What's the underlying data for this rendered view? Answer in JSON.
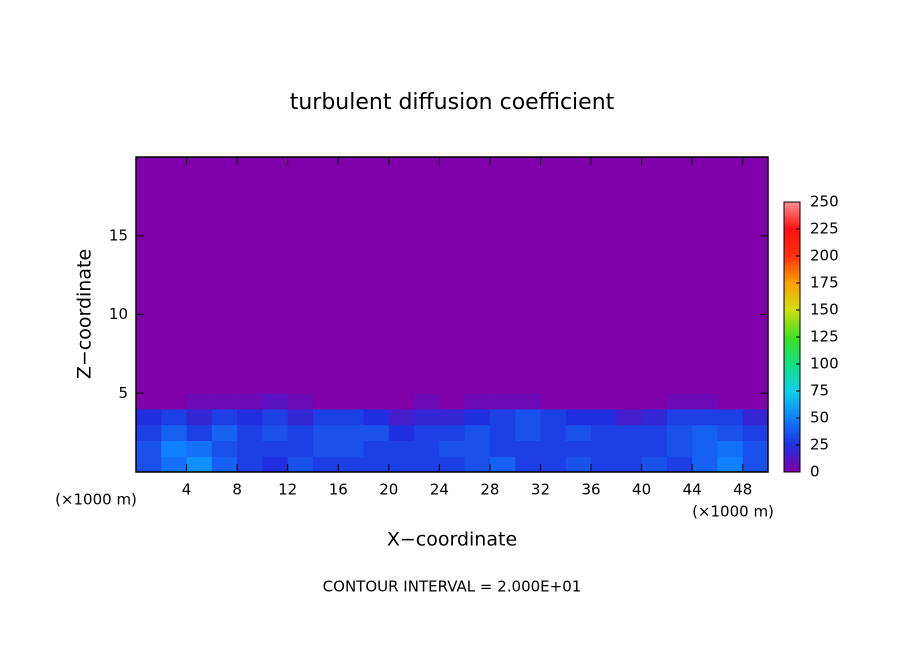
{
  "chart_data": {
    "type": "heatmap",
    "title": "turbulent diffusion coefficient",
    "x_label": "X−coordinate",
    "y_label": "Z−coordinate",
    "x_unit": "(×1000 m)",
    "y_unit": "(×1000 m)",
    "note": "CONTOUR INTERVAL = 2.000E+01",
    "xlim": [
      0,
      50
    ],
    "ylim": [
      0,
      20
    ],
    "xticks": [
      4,
      8,
      12,
      16,
      20,
      24,
      28,
      32,
      36,
      40,
      44,
      48
    ],
    "yticks": [
      5,
      10,
      15
    ],
    "x_edges": [
      0,
      2,
      4,
      6,
      8,
      10,
      12,
      14,
      16,
      18,
      20,
      22,
      24,
      26,
      28,
      30,
      32,
      34,
      36,
      38,
      40,
      42,
      44,
      46,
      48,
      50
    ],
    "y_edges": [
      0,
      1,
      2,
      3,
      4,
      5,
      20
    ],
    "z": [
      [
        35,
        45,
        55,
        40,
        30,
        25,
        35,
        30,
        30,
        30,
        30,
        30,
        30,
        35,
        40,
        30,
        30,
        35,
        30,
        30,
        35,
        30,
        40,
        50,
        35
      ],
      [
        35,
        50,
        45,
        35,
        30,
        30,
        30,
        35,
        35,
        30,
        30,
        30,
        35,
        35,
        30,
        30,
        30,
        30,
        30,
        30,
        30,
        35,
        40,
        45,
        35
      ],
      [
        30,
        40,
        30,
        40,
        30,
        35,
        30,
        35,
        35,
        35,
        25,
        30,
        30,
        35,
        30,
        35,
        30,
        35,
        30,
        30,
        30,
        35,
        40,
        35,
        30
      ],
      [
        25,
        30,
        20,
        30,
        25,
        30,
        20,
        30,
        30,
        25,
        15,
        20,
        20,
        25,
        30,
        35,
        30,
        25,
        25,
        15,
        20,
        30,
        30,
        30,
        20
      ],
      [
        0,
        0,
        5,
        5,
        5,
        10,
        5,
        0,
        0,
        0,
        0,
        5,
        0,
        5,
        5,
        5,
        0,
        0,
        0,
        0,
        0,
        5,
        5,
        0,
        0
      ],
      [
        0,
        0,
        0,
        0,
        0,
        0,
        0,
        0,
        0,
        0,
        0,
        0,
        0,
        0,
        0,
        0,
        0,
        0,
        0,
        0,
        0,
        0,
        0,
        0,
        0
      ]
    ],
    "clim": [
      0,
      250
    ],
    "cticks": [
      0,
      25,
      50,
      75,
      100,
      125,
      150,
      175,
      200,
      225,
      250
    ],
    "colorscale": [
      "#7f00aa",
      "#2030e0",
      "#1080ff",
      "#10d0e8",
      "#10e080",
      "#40e020",
      "#d0e010",
      "#ffa000",
      "#ff3010",
      "#ff1010",
      "#ff9090"
    ]
  }
}
